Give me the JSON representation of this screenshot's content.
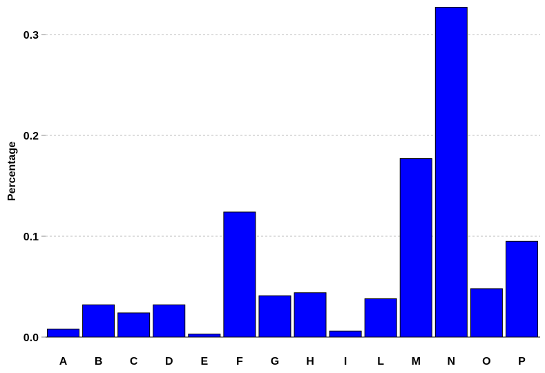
{
  "chart_data": {
    "type": "bar",
    "title": "",
    "xlabel": "",
    "ylabel": "Percentage",
    "categories": [
      "A",
      "B",
      "C",
      "D",
      "E",
      "F",
      "G",
      "H",
      "I",
      "L",
      "M",
      "N",
      "O",
      "P"
    ],
    "values": [
      0.008,
      0.032,
      0.024,
      0.032,
      0.003,
      0.124,
      0.041,
      0.044,
      0.006,
      0.038,
      0.177,
      0.327,
      0.048,
      0.095
    ],
    "ylim": [
      0,
      0.33
    ],
    "yticks": [
      0.0,
      0.1,
      0.2,
      0.3
    ],
    "ytick_labels": [
      "0.0",
      "0.1",
      "0.2",
      "0.3"
    ],
    "grid": "horizontal dashed",
    "legend": "none",
    "colors": {
      "bar_fill": "#0000FF",
      "bar_stroke": "#000000",
      "grid": "#bdbdbd",
      "axis_line": "#000000"
    }
  }
}
